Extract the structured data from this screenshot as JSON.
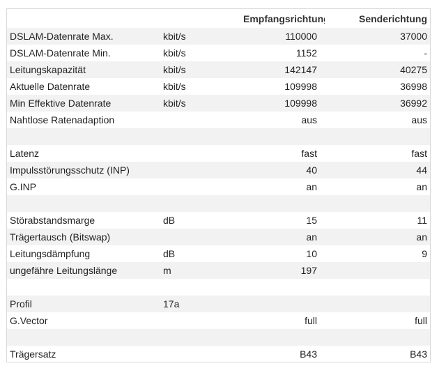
{
  "header": {
    "col_rx": "Empfangsrichtung",
    "col_tx": "Senderichtung"
  },
  "rows": [
    {
      "label": "DSLAM-Datenrate Max.",
      "unit": "kbit/s",
      "rx": "110000",
      "tx": "37000"
    },
    {
      "label": "DSLAM-Datenrate Min.",
      "unit": "kbit/s",
      "rx": "1152",
      "tx": "-"
    },
    {
      "label": "Leitungskapazität",
      "unit": "kbit/s",
      "rx": "142147",
      "tx": "40275"
    },
    {
      "label": "Aktuelle Datenrate",
      "unit": "kbit/s",
      "rx": "109998",
      "tx": "36998"
    },
    {
      "label": "Min Effektive Datenrate",
      "unit": "kbit/s",
      "rx": "109998",
      "tx": "36992"
    },
    {
      "label": "Nahtlose Ratenadaption",
      "unit": "",
      "rx": "aus",
      "tx": "aus"
    },
    {
      "label": "",
      "unit": "",
      "rx": "",
      "tx": ""
    },
    {
      "label": "Latenz",
      "unit": "",
      "rx": "fast",
      "tx": "fast"
    },
    {
      "label": "Impulsstörungsschutz (INP)",
      "unit": "",
      "rx": "40",
      "tx": "44"
    },
    {
      "label": "G.INP",
      "unit": "",
      "rx": "an",
      "tx": "an"
    },
    {
      "label": "",
      "unit": "",
      "rx": "",
      "tx": ""
    },
    {
      "label": "Störabstandsmarge",
      "unit": "dB",
      "rx": "15",
      "tx": "11"
    },
    {
      "label": "Trägertausch (Bitswap)",
      "unit": "",
      "rx": "an",
      "tx": "an"
    },
    {
      "label": "Leitungsdämpfung",
      "unit": "dB",
      "rx": "10",
      "tx": "9"
    },
    {
      "label": "ungefähre Leitungslänge",
      "unit": "m",
      "rx": "197",
      "tx": ""
    },
    {
      "label": "",
      "unit": "",
      "rx": "",
      "tx": ""
    },
    {
      "label": "Profil",
      "unit": "17a",
      "rx": "",
      "tx": ""
    },
    {
      "label": "G.Vector",
      "unit": "",
      "rx": "full",
      "tx": "full"
    },
    {
      "label": "",
      "unit": "",
      "rx": "",
      "tx": ""
    },
    {
      "label": "Trägersatz",
      "unit": "",
      "rx": "B43",
      "tx": "B43"
    }
  ]
}
